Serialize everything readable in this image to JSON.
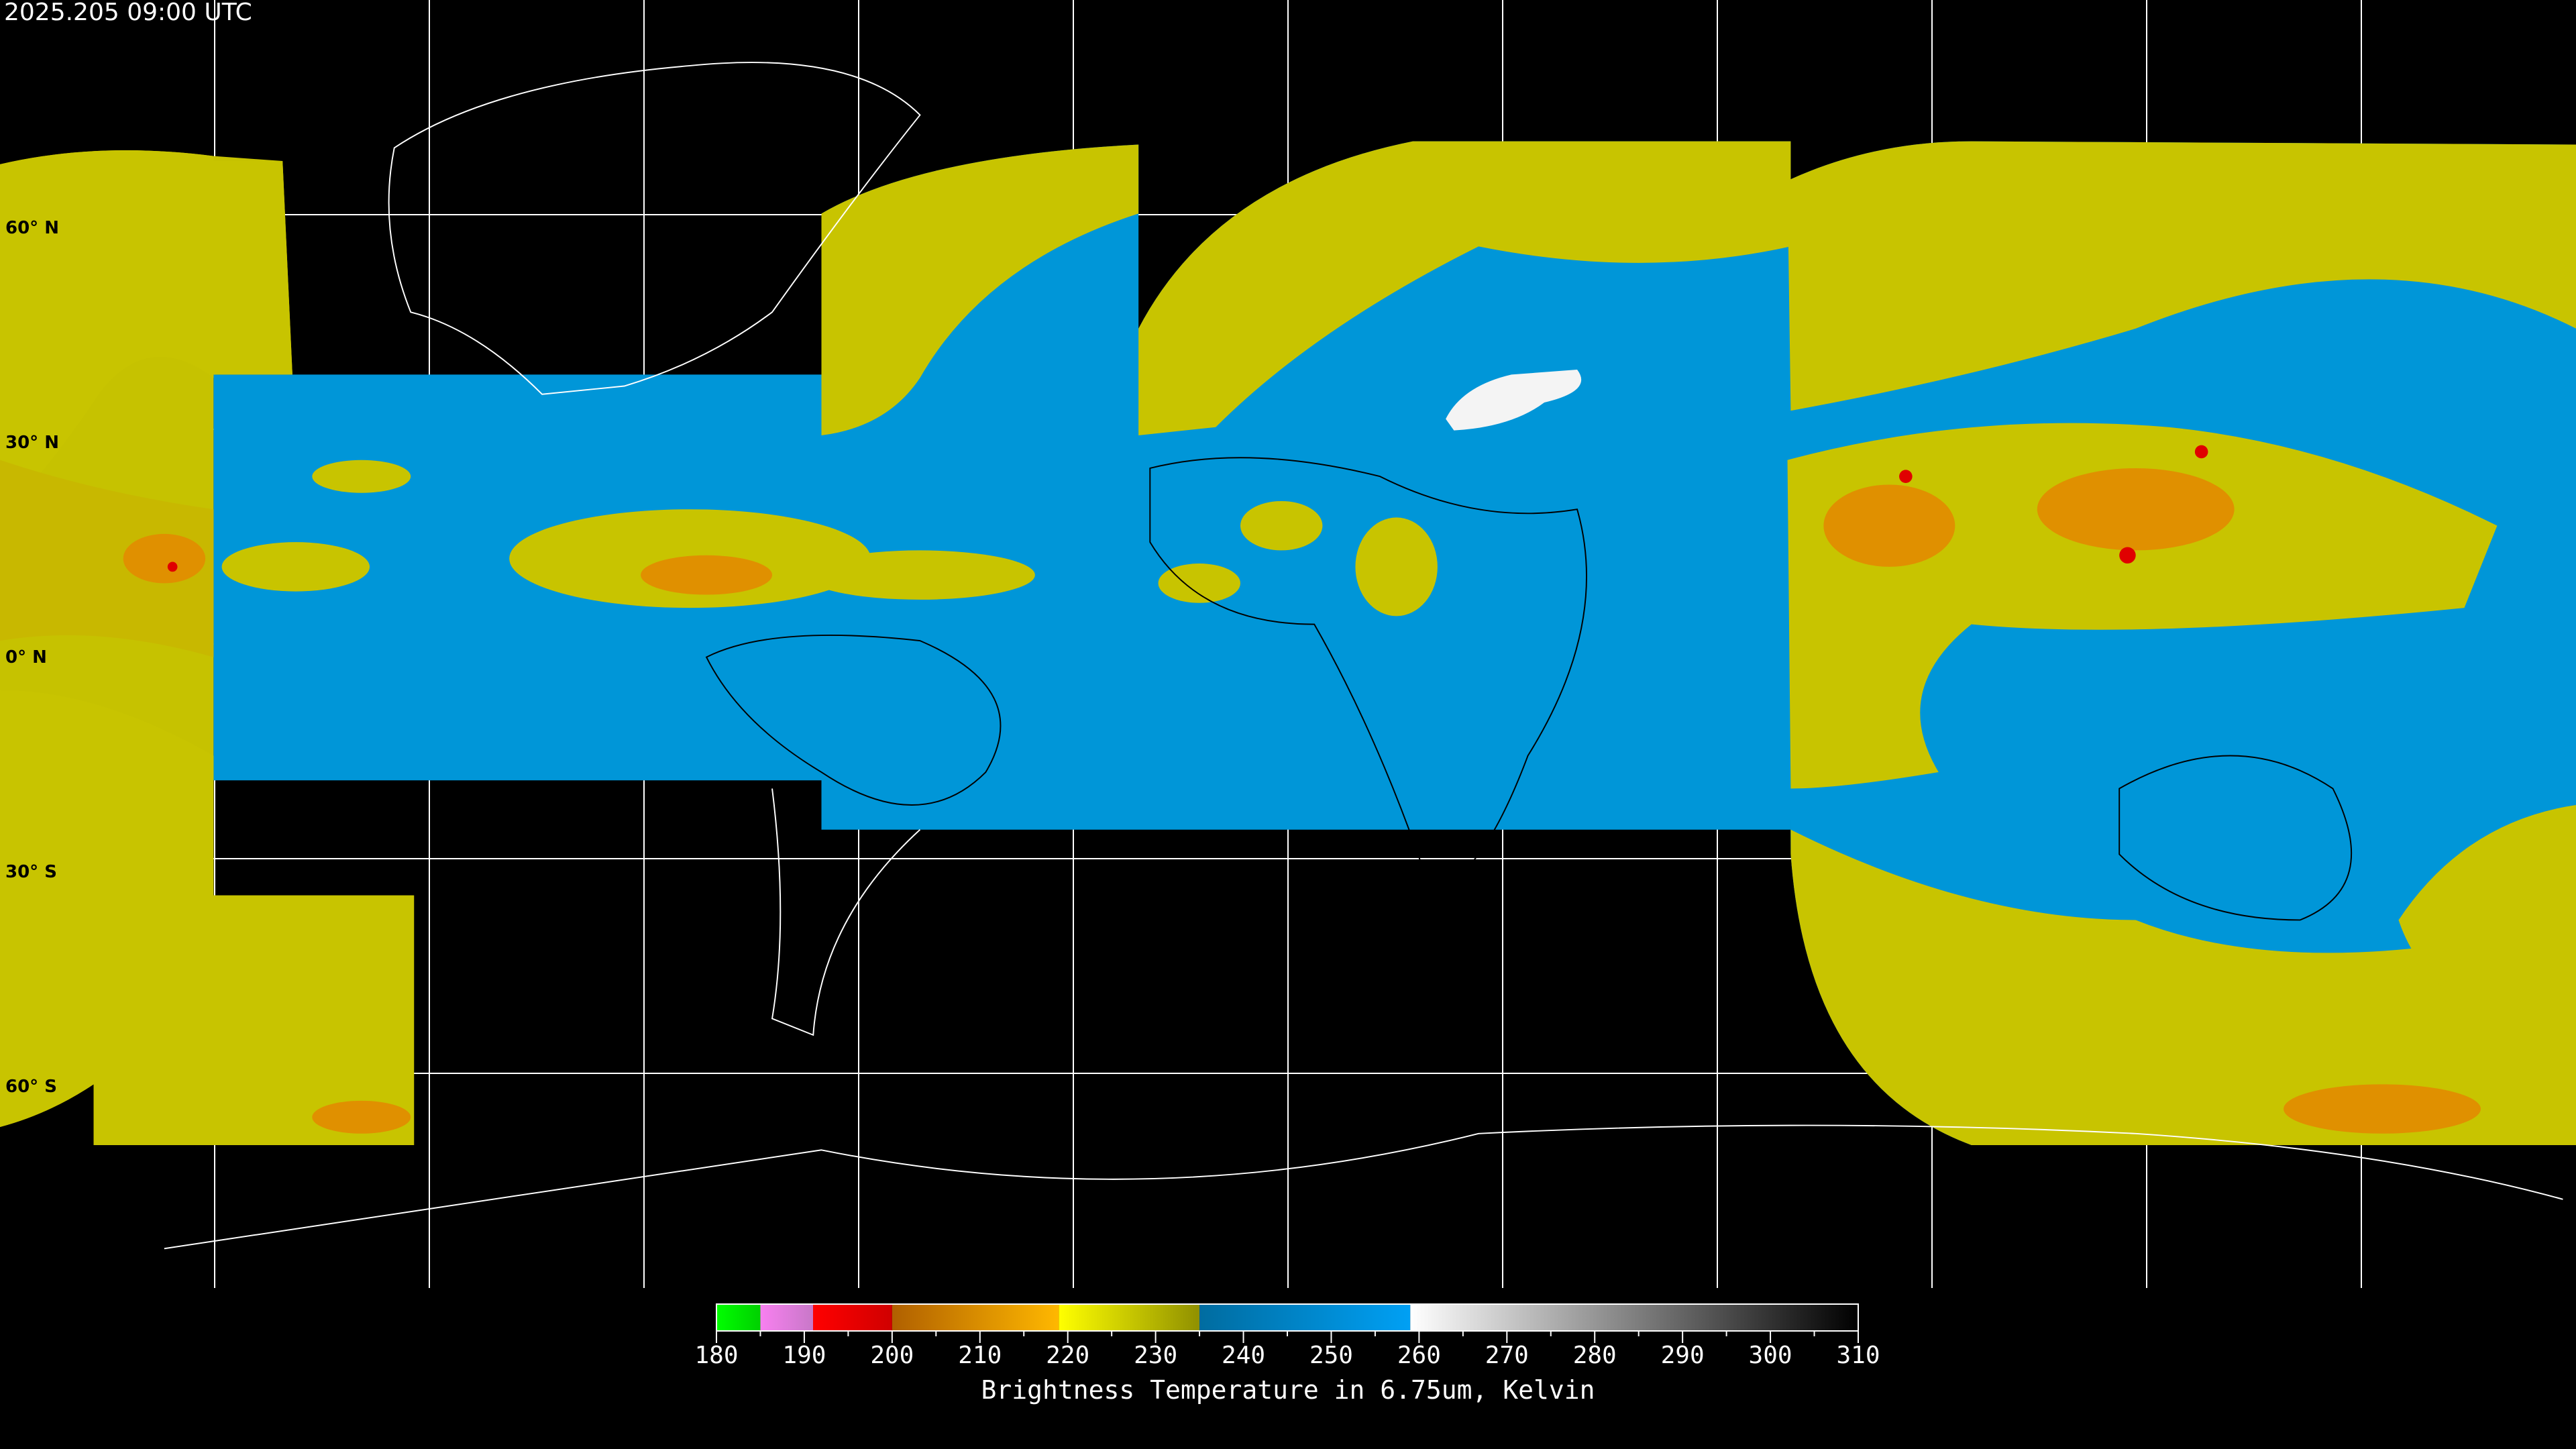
{
  "header": {
    "timestamp": "2025.205 09:00 UTC"
  },
  "map": {
    "projection": "equirectangular",
    "lon_grid_step_deg": 30,
    "lat_labels": [
      "60° N",
      "30° N",
      "0° N",
      "30° S",
      "60° S"
    ],
    "colors": {
      "cold_band": "#0096d8",
      "moist": "#c8c800",
      "dry_patch": "#f4f4f4",
      "no_data": "#000000",
      "coastline_on_land": "#ffffff",
      "coastline_on_data": "#000000"
    }
  },
  "colorbar": {
    "min": 180,
    "max": 310,
    "tick_labels": [
      "180",
      "190",
      "200",
      "210",
      "220",
      "230",
      "240",
      "250",
      "260",
      "270",
      "280",
      "290",
      "300",
      "310"
    ],
    "minor_tick_step": 5,
    "segments": [
      {
        "from": 180,
        "to": 185,
        "start": "#00ff00",
        "end": "#00d000"
      },
      {
        "from": 185,
        "to": 191,
        "start": "#f880f0",
        "end": "#c878c8"
      },
      {
        "from": 191,
        "to": 200,
        "start": "#ff0000",
        "end": "#d00000"
      },
      {
        "from": 200,
        "to": 219,
        "start": "#b06000",
        "end": "#ffb800"
      },
      {
        "from": 219,
        "to": 235,
        "start": "#ffff00",
        "end": "#909000"
      },
      {
        "from": 235,
        "to": 259,
        "start": "#006ca0",
        "end": "#00a0f4"
      },
      {
        "from": 259,
        "to": 310,
        "start": "#ffffff",
        "end": "#000000"
      }
    ],
    "title": "Brightness Temperature in 6.75um, Kelvin"
  }
}
